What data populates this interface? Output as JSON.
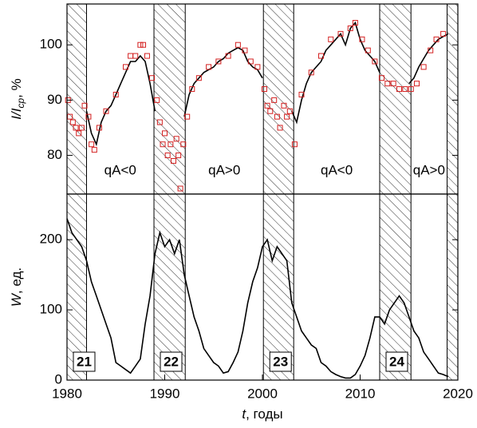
{
  "chart_data": [
    {
      "type": "line",
      "y_label": {
        "var": "I/I",
        "sub": "ср",
        "unit": ", %"
      },
      "xlim": [
        1980,
        2020
      ],
      "ylim": [
        73,
        107.4
      ],
      "yticks": [
        80,
        90,
        100
      ],
      "shaded_periods": [
        [
          1980,
          1982
        ],
        [
          1988.9,
          1992.1
        ],
        [
          2000.1,
          2003.2
        ],
        [
          2012,
          2015.2
        ],
        [
          2018.9,
          2020
        ]
      ],
      "annotations": [
        "qA<0",
        "qA>0",
        "qA<0",
        "qA>0"
      ],
      "series": [
        {
          "type": "line",
          "color": "#000000",
          "x": [
            1982.0,
            1982.5,
            1983.0,
            1983.5,
            1984.0,
            1984.5,
            1985.0,
            1985.5,
            1986.0,
            1986.5,
            1987.0,
            1987.5,
            1988.0,
            1988.5,
            1989.0,
            1992.0,
            1992.0,
            1992.5,
            1993.0,
            1993.5,
            1994.0,
            1994.5,
            1995.0,
            1995.5,
            1996.0,
            1996.5,
            1997.0,
            1997.5,
            1998.0,
            1998.5,
            1999.0,
            1999.5,
            2000.0,
            2003.0,
            2003.0,
            2003.5,
            2004.0,
            2004.5,
            2005.0,
            2005.5,
            2006.0,
            2006.5,
            2007.0,
            2007.5,
            2008.0,
            2008.5,
            2009.0,
            2009.5,
            2010.0,
            2010.5,
            2011.0,
            2011.5,
            2012.0,
            2015.0,
            2015.0,
            2015.5,
            2016.0,
            2016.5,
            2017.0,
            2017.5,
            2018.0,
            2018.5,
            2019.0
          ],
          "values": [
            88,
            84,
            82,
            86,
            88,
            89,
            91,
            93,
            95,
            97,
            97,
            98,
            97,
            93,
            88,
            null,
            87,
            91,
            93,
            94,
            95,
            95.5,
            96,
            97,
            97.5,
            98.5,
            99,
            99.5,
            99,
            97,
            96,
            95.5,
            94,
            null,
            88,
            86,
            90,
            93,
            95,
            96,
            97,
            99,
            100,
            101,
            102,
            100,
            103,
            104,
            101,
            99,
            98,
            97,
            95,
            null,
            93,
            94,
            96,
            97.5,
            99,
            100,
            101,
            101.5,
            102
          ]
        },
        {
          "type": "scatter",
          "marker": "square",
          "color": "#d42020",
          "x": [
            1980.1,
            1980.3,
            1980.6,
            1980.9,
            1981.2,
            1981.5,
            1981.8,
            1982.2,
            1982.5,
            1982.8,
            1983.3,
            1984,
            1985,
            1986,
            1986.5,
            1987,
            1987.5,
            1987.8,
            1988.2,
            1988.7,
            1989.2,
            1989.5,
            1989.8,
            1990,
            1990.3,
            1990.6,
            1990.9,
            1991.2,
            1991.4,
            1991.6,
            1991.9,
            1992.3,
            1992.8,
            1993.5,
            1994.5,
            1995.5,
            1996.5,
            1997.5,
            1998.2,
            1998.8,
            1999.5,
            2000.2,
            2000.5,
            2000.8,
            2001.2,
            2001.5,
            2001.8,
            2002.2,
            2002.5,
            2002.8,
            2003.3,
            2004,
            2005,
            2006,
            2007,
            2008,
            2009,
            2009.5,
            2010.2,
            2010.8,
            2011.5,
            2012.2,
            2012.8,
            2013.4,
            2014,
            2014.6,
            2015.2,
            2015.8,
            2016.5,
            2017.2,
            2017.8,
            2018.5
          ],
          "values": [
            90,
            87,
            86,
            85,
            84,
            85,
            89,
            87,
            82,
            81,
            85,
            88,
            91,
            96,
            98,
            98,
            100,
            100,
            98,
            94,
            90,
            86,
            82,
            84,
            80,
            82,
            79,
            83,
            80,
            74,
            82,
            87,
            92,
            94,
            96,
            97,
            98,
            100,
            99,
            97,
            96,
            92,
            89,
            88,
            90,
            87,
            85,
            89,
            87,
            88,
            82,
            91,
            95,
            98,
            101,
            102,
            103,
            104,
            101,
            99,
            97,
            94,
            93,
            93,
            92,
            92,
            92,
            93,
            96,
            99,
            101,
            102
          ]
        }
      ]
    },
    {
      "type": "line",
      "y_label": {
        "var": "W",
        "unit": ", ед."
      },
      "x_label": {
        "var": "t",
        "unit": ", годы"
      },
      "xlim": [
        1980,
        2020
      ],
      "xticks": [
        1980,
        1990,
        2000,
        2010,
        2020
      ],
      "ylim": [
        0,
        265
      ],
      "yticks": [
        0,
        100,
        200
      ],
      "shaded_periods": [
        [
          1980,
          1982
        ],
        [
          1988.9,
          1992.1
        ],
        [
          2000.1,
          2003.2
        ],
        [
          2012,
          2015.2
        ],
        [
          2018.9,
          2020
        ]
      ],
      "cycle_labels": [
        "21",
        "22",
        "23",
        "24"
      ],
      "series": [
        {
          "type": "line",
          "color": "#000000",
          "x": [
            1980.0,
            1980.5,
            1981.0,
            1981.5,
            1982.0,
            1982.5,
            1983.0,
            1983.5,
            1984.0,
            1984.5,
            1985.0,
            1985.5,
            1986.0,
            1986.5,
            1987.0,
            1987.5,
            1988.0,
            1988.5,
            1989.0,
            1989.5,
            1990.0,
            1990.5,
            1991.0,
            1991.5,
            1992.0,
            1992.5,
            1993.0,
            1993.5,
            1994.0,
            1994.5,
            1995.0,
            1995.5,
            1996.0,
            1996.5,
            1997.0,
            1997.5,
            1998.0,
            1998.5,
            1999.0,
            1999.5,
            2000.0,
            2000.5,
            2001.0,
            2001.5,
            2002.0,
            2002.5,
            2003.0,
            2003.5,
            2004.0,
            2004.5,
            2005.0,
            2005.5,
            2006.0,
            2006.5,
            2007.0,
            2007.5,
            2008.0,
            2008.5,
            2009.0,
            2009.5,
            2010.0,
            2010.5,
            2011.0,
            2011.5,
            2012.0,
            2012.5,
            2013.0,
            2013.5,
            2014.0,
            2014.5,
            2015.0,
            2015.5,
            2016.0,
            2016.5,
            2017.0,
            2017.5,
            2018.0,
            2018.5,
            2019.0
          ],
          "values": [
            230,
            210,
            200,
            190,
            170,
            140,
            120,
            100,
            80,
            60,
            25,
            20,
            15,
            10,
            20,
            30,
            80,
            120,
            180,
            210,
            190,
            200,
            180,
            200,
            150,
            120,
            90,
            70,
            45,
            35,
            25,
            20,
            10,
            12,
            25,
            40,
            70,
            110,
            140,
            160,
            190,
            200,
            170,
            190,
            180,
            170,
            110,
            90,
            70,
            60,
            50,
            45,
            25,
            20,
            12,
            8,
            5,
            3,
            3,
            8,
            20,
            35,
            60,
            90,
            90,
            80,
            100,
            110,
            120,
            110,
            90,
            70,
            60,
            40,
            30,
            20,
            10,
            8,
            5
          ]
        }
      ]
    }
  ]
}
